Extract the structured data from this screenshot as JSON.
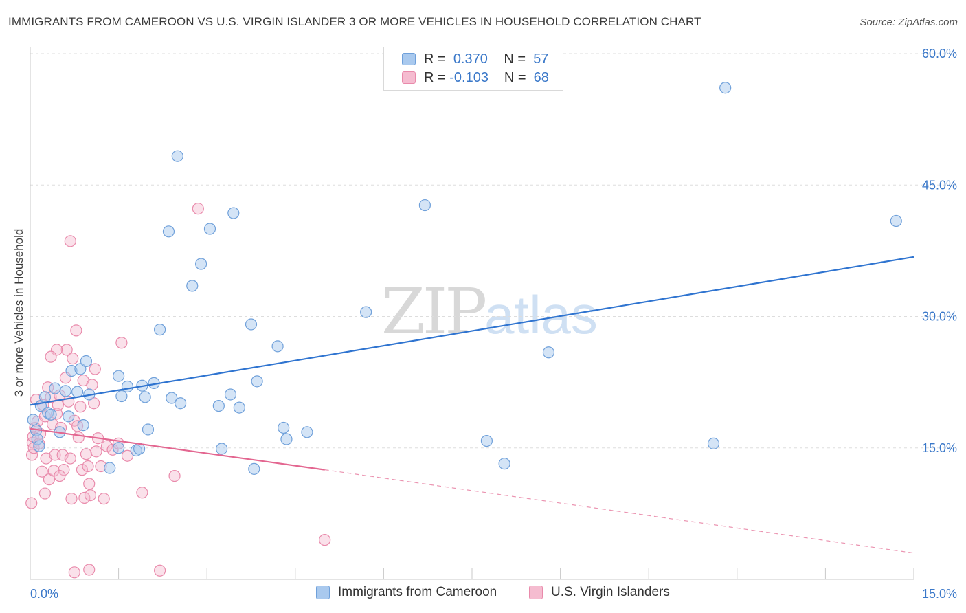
{
  "header": {
    "title": "IMMIGRANTS FROM CAMEROON VS U.S. VIRGIN ISLANDER 3 OR MORE VEHICLES IN HOUSEHOLD CORRELATION CHART",
    "source": "Source: ZipAtlas.com"
  },
  "watermark": {
    "part1": "ZIP",
    "part2": "atlas"
  },
  "legend": {
    "rows": [
      {
        "r_label": "R =",
        "r_value": "0.370",
        "n_label": "N =",
        "n_value": "57"
      },
      {
        "r_label": "R =",
        "r_value": "-0.103",
        "n_label": "N =",
        "n_value": "68"
      }
    ]
  },
  "colors": {
    "blue_fill": "#a9c9ee",
    "blue_stroke": "#6fa0da",
    "blue_line": "#2f74d0",
    "pink_fill": "#f5bcd0",
    "pink_stroke": "#e98aab",
    "pink_line": "#e36690",
    "grid": "#dddddd",
    "axis_text": "#3a78c9"
  },
  "chart_data": {
    "type": "scatter",
    "title": "IMMIGRANTS FROM CAMEROON VS U.S. VIRGIN ISLANDER 3 OR MORE VEHICLES IN HOUSEHOLD CORRELATION CHART",
    "xlabel": "",
    "ylabel": "3 or more Vehicles in Household",
    "xlim": [
      0,
      15
    ],
    "ylim": [
      0,
      60
    ],
    "x_tick_labels": [
      "0.0%",
      "15.0%"
    ],
    "y_tick_labels": [
      "15.0%",
      "30.0%",
      "45.0%",
      "60.0%"
    ],
    "y_ticks": [
      15,
      30,
      45,
      60
    ],
    "grid": true,
    "legend_position": "top-center",
    "series": [
      {
        "name": "Immigrants from Cameroon",
        "color": "#a9c9ee",
        "r": 0.37,
        "n": 57,
        "trend": {
          "x": [
            0.0,
            15.0
          ],
          "y": [
            19.9,
            36.8
          ],
          "style": "solid"
        },
        "points": [
          [
            0.05,
            18.2
          ],
          [
            0.1,
            17.0
          ],
          [
            0.12,
            16.0
          ],
          [
            0.15,
            15.2
          ],
          [
            0.18,
            19.8
          ],
          [
            0.25,
            20.8
          ],
          [
            0.3,
            19.0
          ],
          [
            0.35,
            18.8
          ],
          [
            0.42,
            21.8
          ],
          [
            0.5,
            16.8
          ],
          [
            0.6,
            21.5
          ],
          [
            0.65,
            18.6
          ],
          [
            0.7,
            23.8
          ],
          [
            0.8,
            21.4
          ],
          [
            0.85,
            24.0
          ],
          [
            0.9,
            17.6
          ],
          [
            0.95,
            24.9
          ],
          [
            1.0,
            21.1
          ],
          [
            1.35,
            12.7
          ],
          [
            1.5,
            15.0
          ],
          [
            1.5,
            23.2
          ],
          [
            1.55,
            20.9
          ],
          [
            1.65,
            22.0
          ],
          [
            1.8,
            14.7
          ],
          [
            1.85,
            14.9
          ],
          [
            1.9,
            22.1
          ],
          [
            1.95,
            20.8
          ],
          [
            2.0,
            17.1
          ],
          [
            2.1,
            22.4
          ],
          [
            2.2,
            28.5
          ],
          [
            2.35,
            39.7
          ],
          [
            2.4,
            20.7
          ],
          [
            2.5,
            48.3
          ],
          [
            2.55,
            20.1
          ],
          [
            2.75,
            33.5
          ],
          [
            2.9,
            36.0
          ],
          [
            3.05,
            40.0
          ],
          [
            3.2,
            19.8
          ],
          [
            3.25,
            14.9
          ],
          [
            3.4,
            21.1
          ],
          [
            3.45,
            41.8
          ],
          [
            3.55,
            19.6
          ],
          [
            3.75,
            29.1
          ],
          [
            3.8,
            12.6
          ],
          [
            3.85,
            22.6
          ],
          [
            4.2,
            26.6
          ],
          [
            4.3,
            17.3
          ],
          [
            4.35,
            16.0
          ],
          [
            4.7,
            16.8
          ],
          [
            5.7,
            30.5
          ],
          [
            6.7,
            42.7
          ],
          [
            7.75,
            15.8
          ],
          [
            8.05,
            13.2
          ],
          [
            8.8,
            25.9
          ],
          [
            11.6,
            15.5
          ],
          [
            11.8,
            56.1
          ],
          [
            14.7,
            40.9
          ]
        ]
      },
      {
        "name": "U.S. Virgin Islanders",
        "color": "#f5bcd0",
        "r": -0.103,
        "n": 68,
        "trend": {
          "x": [
            0.0,
            5.0
          ],
          "y": [
            17.2,
            12.5
          ],
          "style": "solid",
          "extension": {
            "x": [
              5.0,
              15.0
            ],
            "y": [
              12.5,
              3.0
            ],
            "style": "dashed"
          }
        },
        "points": [
          [
            0.02,
            8.7
          ],
          [
            0.03,
            14.2
          ],
          [
            0.04,
            15.6
          ],
          [
            0.05,
            16.3
          ],
          [
            0.06,
            15.0
          ],
          [
            0.08,
            17.3
          ],
          [
            0.1,
            20.5
          ],
          [
            0.12,
            18.0
          ],
          [
            0.15,
            15.5
          ],
          [
            0.17,
            16.6
          ],
          [
            0.2,
            12.3
          ],
          [
            0.22,
            19.9
          ],
          [
            0.25,
            18.6
          ],
          [
            0.27,
            13.8
          ],
          [
            0.3,
            21.9
          ],
          [
            0.32,
            11.4
          ],
          [
            0.35,
            20.8
          ],
          [
            0.38,
            17.7
          ],
          [
            0.4,
            12.4
          ],
          [
            0.42,
            14.2
          ],
          [
            0.45,
            18.9
          ],
          [
            0.47,
            19.9
          ],
          [
            0.5,
            21.0
          ],
          [
            0.52,
            17.3
          ],
          [
            0.55,
            14.2
          ],
          [
            0.57,
            12.5
          ],
          [
            0.6,
            23.0
          ],
          [
            0.62,
            26.2
          ],
          [
            0.65,
            20.3
          ],
          [
            0.68,
            13.8
          ],
          [
            0.7,
            9.2
          ],
          [
            0.72,
            25.2
          ],
          [
            0.75,
            18.1
          ],
          [
            0.78,
            28.4
          ],
          [
            0.8,
            17.5
          ],
          [
            0.82,
            16.2
          ],
          [
            0.85,
            19.7
          ],
          [
            0.88,
            12.5
          ],
          [
            0.9,
            22.7
          ],
          [
            0.92,
            9.3
          ],
          [
            0.95,
            14.3
          ],
          [
            0.98,
            12.9
          ],
          [
            1.0,
            10.9
          ],
          [
            1.02,
            9.6
          ],
          [
            1.05,
            22.2
          ],
          [
            1.08,
            20.1
          ],
          [
            1.1,
            24.0
          ],
          [
            1.12,
            14.6
          ],
          [
            1.15,
            16.1
          ],
          [
            1.2,
            12.9
          ],
          [
            1.25,
            9.2
          ],
          [
            1.3,
            15.2
          ],
          [
            1.4,
            14.8
          ],
          [
            1.5,
            15.5
          ],
          [
            1.55,
            27.0
          ],
          [
            1.65,
            14.1
          ],
          [
            1.9,
            9.9
          ],
          [
            2.2,
            1.0
          ],
          [
            2.45,
            11.8
          ],
          [
            2.85,
            42.3
          ],
          [
            5.0,
            4.5
          ],
          [
            0.68,
            38.6
          ],
          [
            0.45,
            26.2
          ],
          [
            0.35,
            25.4
          ],
          [
            0.5,
            11.8
          ],
          [
            0.75,
            0.8
          ],
          [
            1.0,
            1.1
          ],
          [
            0.25,
            9.8
          ]
        ]
      }
    ]
  },
  "bottom_legend": {
    "items": [
      {
        "label": "Immigrants from Cameroon"
      },
      {
        "label": "U.S. Virgin Islanders"
      }
    ]
  }
}
